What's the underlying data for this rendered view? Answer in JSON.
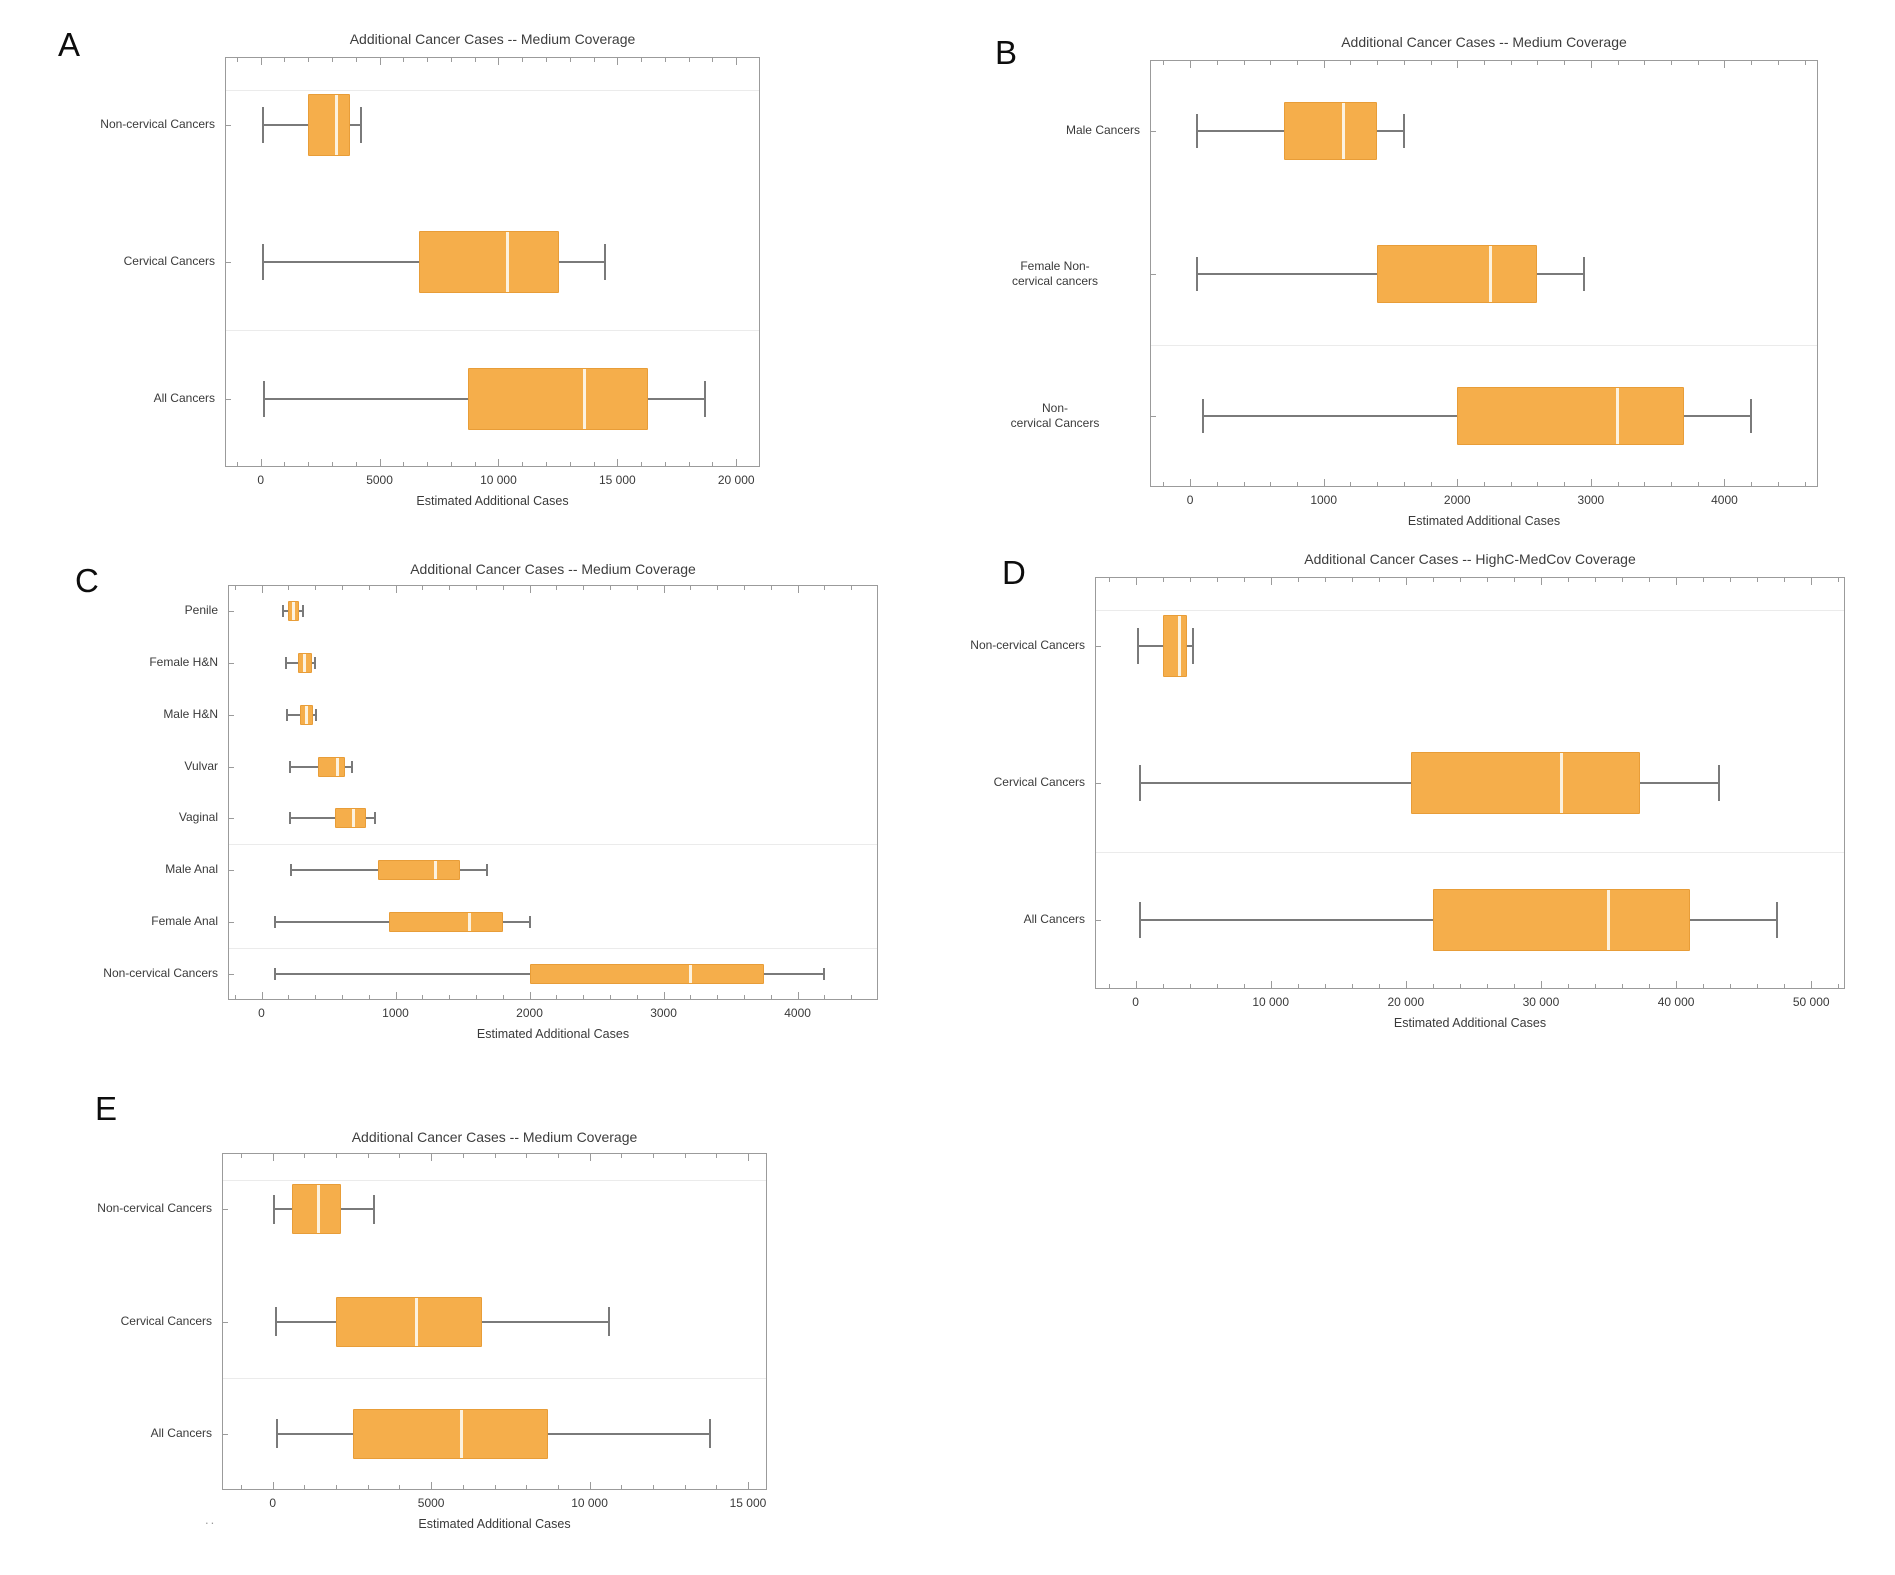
{
  "artifact_text": "..",
  "style": {
    "box_fill": "#F5AE4B",
    "box_edge": "#E89D38",
    "median_color": "#FCF2DF",
    "whisker_color": "#7a7a7a",
    "frame_color": "#9b9b9b",
    "divider_color": "#ebebeb",
    "text_color": "#3a3a3a"
  },
  "chart_data": [
    {
      "panel": "A",
      "type": "boxplot",
      "orientation": "horizontal",
      "title": "Additional Cancer Cases -- Medium Coverage",
      "xlabel": "Estimated Additional Cases",
      "xlim": [
        -1500,
        21000
      ],
      "xticks": [
        0,
        5000,
        10000,
        15000,
        20000
      ],
      "xtick_labels": [
        "0",
        "5000",
        "10 000",
        "15 000",
        "20 000"
      ],
      "minor_tick_step": 1000,
      "grid": false,
      "legend": null,
      "categories": [
        "Non-cervical Cancers",
        "Cervical Cancers",
        "All Cancers"
      ],
      "series": [
        {
          "name": "Non-cervical Cancers",
          "whisker_min": 100,
          "q1": 2000,
          "median": 3200,
          "q3": 3750,
          "whisker_max": 4200
        },
        {
          "name": "Cervical Cancers",
          "whisker_min": 100,
          "q1": 6650,
          "median": 10400,
          "q3": 12550,
          "whisker_max": 14500
        },
        {
          "name": "All Cancers",
          "whisker_min": 150,
          "q1": 8700,
          "median": 13600,
          "q3": 16300,
          "whisker_max": 18700
        }
      ],
      "top_divider": true,
      "dividers_after_row": [
        1
      ]
    },
    {
      "panel": "B",
      "type": "boxplot",
      "orientation": "horizontal",
      "title": "Additional Cancer Cases -- Medium Coverage",
      "xlabel": "Estimated Additional Cases",
      "xlim": [
        -300,
        4700
      ],
      "xticks": [
        0,
        1000,
        2000,
        3000,
        4000
      ],
      "xtick_labels": [
        "0",
        "1000",
        "2000",
        "3000",
        "4000"
      ],
      "minor_tick_step": 200,
      "grid": false,
      "legend": null,
      "categories": [
        "Male Cancers",
        "Female Non-\ncervical cancers",
        "Non-\ncervical Cancers"
      ],
      "series": [
        {
          "name": "Male Cancers",
          "whisker_min": 50,
          "q1": 700,
          "median": 1150,
          "q3": 1400,
          "whisker_max": 1600
        },
        {
          "name": "Female Non-cervical cancers",
          "whisker_min": 50,
          "q1": 1400,
          "median": 2250,
          "q3": 2600,
          "whisker_max": 2950
        },
        {
          "name": "Non-cervical Cancers",
          "whisker_min": 100,
          "q1": 2000,
          "median": 3200,
          "q3": 3700,
          "whisker_max": 4200
        }
      ],
      "top_divider": false,
      "dividers_after_row": [
        1
      ]
    },
    {
      "panel": "C",
      "type": "boxplot",
      "orientation": "horizontal",
      "title": "Additional Cancer Cases -- Medium Coverage",
      "xlabel": "Estimated Additional Cases",
      "xlim": [
        -250,
        4600
      ],
      "xticks": [
        0,
        1000,
        2000,
        3000,
        4000
      ],
      "xtick_labels": [
        "0",
        "1000",
        "2000",
        "3000",
        "4000"
      ],
      "minor_tick_step": 200,
      "grid": false,
      "legend": null,
      "categories": [
        "Penile",
        "Female H&N",
        "Male H&N",
        "Vulvar",
        "Vaginal",
        "Male Anal",
        "Female Anal",
        "Non-cervical Cancers"
      ],
      "series": [
        {
          "name": "Penile",
          "whisker_min": 160,
          "q1": 200,
          "median": 240,
          "q3": 280,
          "whisker_max": 310
        },
        {
          "name": "Female H&N",
          "whisker_min": 180,
          "q1": 270,
          "median": 320,
          "q3": 375,
          "whisker_max": 400
        },
        {
          "name": "Male H&N",
          "whisker_min": 190,
          "q1": 285,
          "median": 335,
          "q3": 385,
          "whisker_max": 410
        },
        {
          "name": "Vulvar",
          "whisker_min": 210,
          "q1": 425,
          "median": 565,
          "q3": 625,
          "whisker_max": 675
        },
        {
          "name": "Vaginal",
          "whisker_min": 210,
          "q1": 545,
          "median": 690,
          "q3": 780,
          "whisker_max": 850
        },
        {
          "name": "Male Anal",
          "whisker_min": 220,
          "q1": 870,
          "median": 1300,
          "q3": 1480,
          "whisker_max": 1680
        },
        {
          "name": "Female Anal",
          "whisker_min": 100,
          "q1": 950,
          "median": 1550,
          "q3": 1800,
          "whisker_max": 2000
        },
        {
          "name": "Non-cervical Cancers",
          "whisker_min": 100,
          "q1": 2000,
          "median": 3200,
          "q3": 3750,
          "whisker_max": 4200
        }
      ],
      "top_divider": false,
      "dividers_after_row": [
        4,
        6
      ]
    },
    {
      "panel": "D",
      "type": "boxplot",
      "orientation": "horizontal",
      "title": "Additional Cancer Cases -- HighC-MedCov Coverage",
      "xlabel": "Estimated Additional Cases",
      "xlim": [
        -3000,
        52500
      ],
      "xticks": [
        0,
        10000,
        20000,
        30000,
        40000,
        50000
      ],
      "xtick_labels": [
        "0",
        "10 000",
        "20 000",
        "30 000",
        "40 000",
        "50 000"
      ],
      "minor_tick_step": 2000,
      "grid": false,
      "legend": null,
      "categories": [
        "Non-cervical Cancers",
        "Cervical Cancers",
        "All Cancers"
      ],
      "series": [
        {
          "name": "Non-cervical Cancers",
          "whisker_min": 150,
          "q1": 2050,
          "median": 3250,
          "q3": 3800,
          "whisker_max": 4250
        },
        {
          "name": "Cervical Cancers",
          "whisker_min": 300,
          "q1": 20400,
          "median": 31500,
          "q3": 37300,
          "whisker_max": 43200
        },
        {
          "name": "All Cancers",
          "whisker_min": 300,
          "q1": 22000,
          "median": 35000,
          "q3": 41000,
          "whisker_max": 47500
        }
      ],
      "top_divider": true,
      "dividers_after_row": [
        1
      ]
    },
    {
      "panel": "E",
      "type": "boxplot",
      "orientation": "horizontal",
      "title": "Additional Cancer Cases -- Medium Coverage",
      "xlabel": "Estimated Additional Cases",
      "xlim": [
        -1600,
        15600
      ],
      "xticks": [
        0,
        5000,
        10000,
        15000
      ],
      "xtick_labels": [
        "0",
        "5000",
        "10 000",
        "15 000"
      ],
      "minor_tick_step": 1000,
      "grid": false,
      "legend": null,
      "categories": [
        "Non-cervical Cancers",
        "Cervical Cancers",
        "All Cancers"
      ],
      "series": [
        {
          "name": "Non-cervical Cancers",
          "whisker_min": 50,
          "q1": 600,
          "median": 1450,
          "q3": 2150,
          "whisker_max": 3200
        },
        {
          "name": "Cervical Cancers",
          "whisker_min": 100,
          "q1": 2000,
          "median": 4550,
          "q3": 6600,
          "whisker_max": 10600
        },
        {
          "name": "All Cancers",
          "whisker_min": 150,
          "q1": 2550,
          "median": 5950,
          "q3": 8700,
          "whisker_max": 13800
        }
      ],
      "top_divider": true,
      "dividers_after_row": [
        1
      ]
    }
  ]
}
